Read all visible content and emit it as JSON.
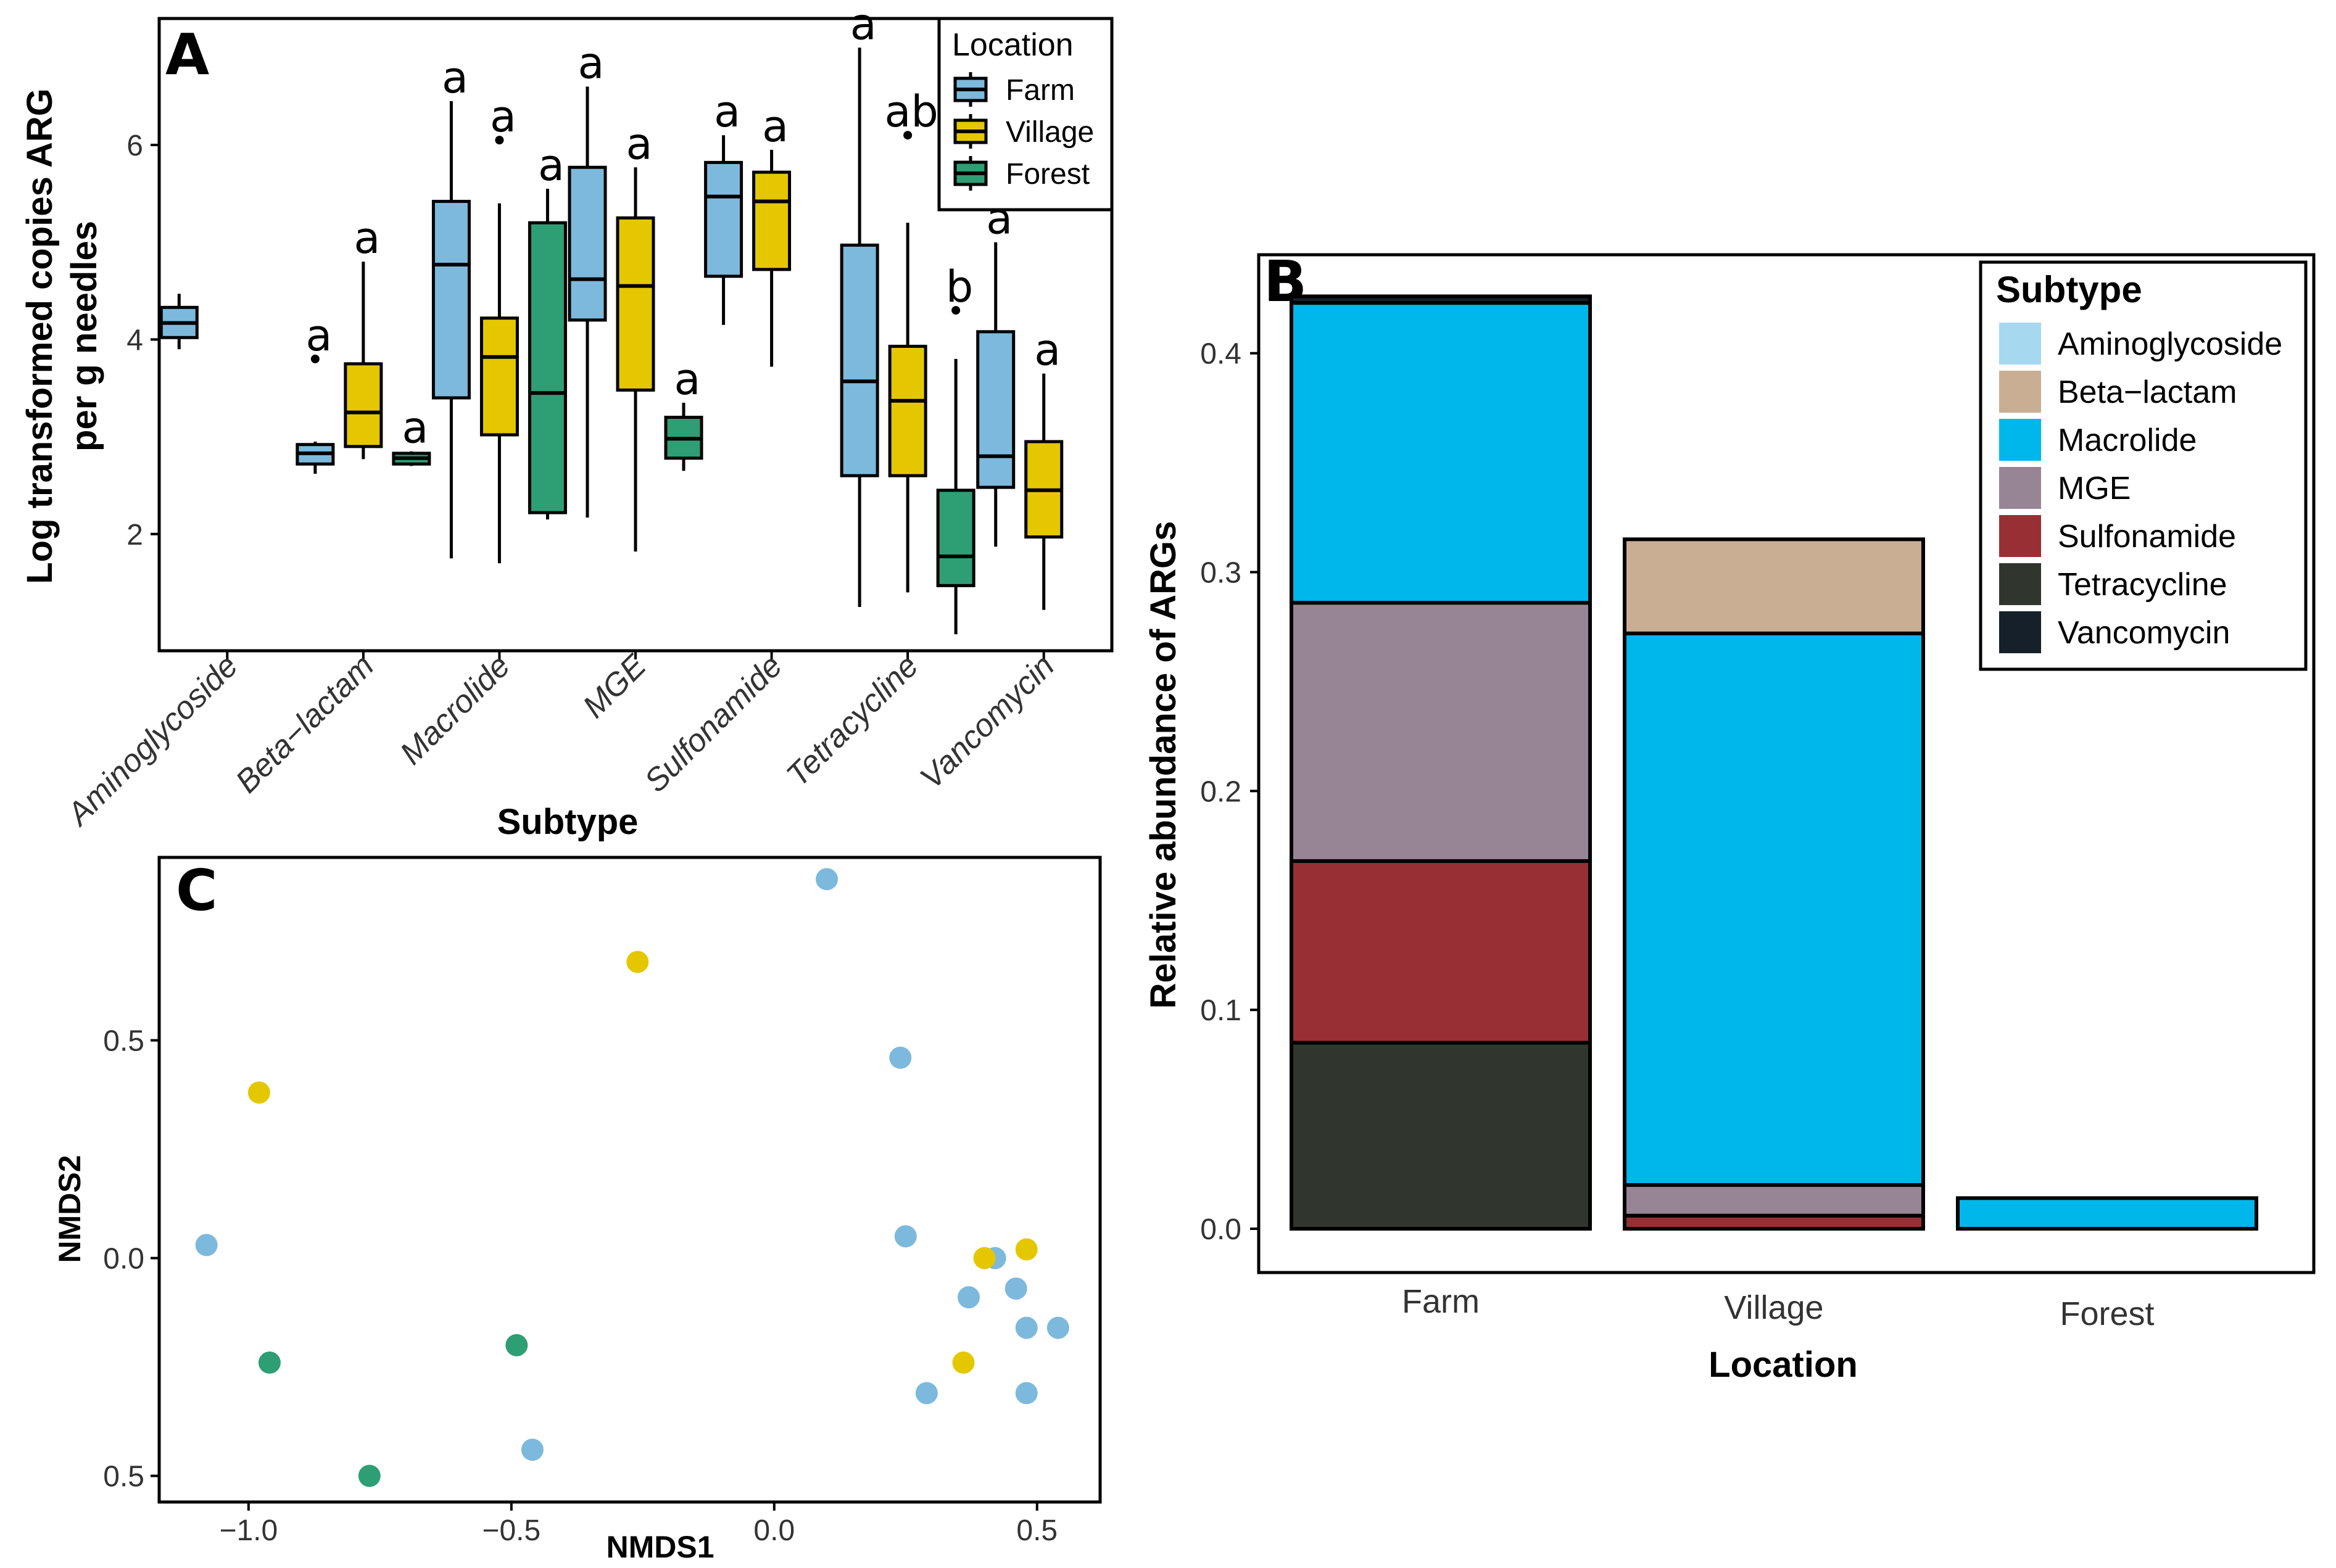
{
  "chart_data": [
    {
      "panel": "A",
      "type": "box",
      "xlabel": "Subtype",
      "ylabel": [
        "Log transformed copies ARG",
        "per g needles"
      ],
      "ylim": [
        0.8,
        7.3
      ],
      "yticks": [
        2,
        4,
        6
      ],
      "categories": [
        "Aminoglycoside",
        "Beta−lactam",
        "Macrolide",
        "MGE",
        "Sulfonamide",
        "Tetracycline",
        "Vancomycin"
      ],
      "legend": {
        "title": "Location",
        "entries": [
          "Farm",
          "Village",
          "Forest"
        ]
      },
      "colors": {
        "Farm": "#7DB9DC",
        "Village": "#E5C700",
        "Forest": "#2E9E75"
      },
      "boxes": [
        {
          "category": "Aminoglycoside",
          "location": "Farm",
          "low": 3.9,
          "q1": 4.02,
          "median": 4.17,
          "q3": 4.33,
          "high": 4.47,
          "outliers": [],
          "letter": ""
        },
        {
          "category": "Beta−lactam",
          "location": "Farm",
          "low": 2.62,
          "q1": 2.72,
          "median": 2.83,
          "q3": 2.92,
          "high": 2.95,
          "outliers": [
            3.8
          ],
          "letter": "a"
        },
        {
          "category": "Beta−lactam",
          "location": "Village",
          "low": 2.77,
          "q1": 2.9,
          "median": 3.25,
          "q3": 3.75,
          "high": 4.8,
          "outliers": [],
          "letter": "a"
        },
        {
          "category": "Beta−lactam",
          "location": "Forest",
          "low": 2.7,
          "q1": 2.72,
          "median": 2.78,
          "q3": 2.83,
          "high": 2.85,
          "outliers": [],
          "letter": "a"
        },
        {
          "category": "Macrolide",
          "location": "Farm",
          "low": 1.75,
          "q1": 3.4,
          "median": 4.77,
          "q3": 5.42,
          "high": 6.45,
          "outliers": [],
          "letter": "a"
        },
        {
          "category": "Macrolide",
          "location": "Village",
          "low": 1.7,
          "q1": 3.02,
          "median": 3.82,
          "q3": 4.22,
          "high": 5.4,
          "outliers": [
            6.05
          ],
          "letter": "a"
        },
        {
          "category": "Macrolide",
          "location": "Forest",
          "low": 2.15,
          "q1": 2.22,
          "median": 3.45,
          "q3": 5.2,
          "high": 5.55,
          "outliers": [],
          "letter": "a"
        },
        {
          "category": "MGE",
          "location": "Farm",
          "low": 2.17,
          "q1": 4.2,
          "median": 4.62,
          "q3": 5.77,
          "high": 6.6,
          "outliers": [],
          "letter": "a"
        },
        {
          "category": "MGE",
          "location": "Village",
          "low": 1.82,
          "q1": 3.48,
          "median": 4.55,
          "q3": 5.25,
          "high": 5.77,
          "outliers": [],
          "letter": "a"
        },
        {
          "category": "MGE",
          "location": "Forest",
          "low": 2.65,
          "q1": 2.78,
          "median": 2.98,
          "q3": 3.2,
          "high": 3.35,
          "outliers": [],
          "letter": "a"
        },
        {
          "category": "Sulfonamide",
          "location": "Farm",
          "low": 4.15,
          "q1": 4.65,
          "median": 5.47,
          "q3": 5.82,
          "high": 6.1,
          "outliers": [],
          "letter": "a"
        },
        {
          "category": "Sulfonamide",
          "location": "Village",
          "low": 3.72,
          "q1": 4.72,
          "median": 5.42,
          "q3": 5.72,
          "high": 5.95,
          "outliers": [],
          "letter": "a"
        },
        {
          "category": "Tetracycline",
          "location": "Farm",
          "low": 1.25,
          "q1": 2.6,
          "median": 3.57,
          "q3": 4.97,
          "high": 7.0,
          "outliers": [],
          "letter": "a"
        },
        {
          "category": "Tetracycline",
          "location": "Village",
          "low": 1.4,
          "q1": 2.6,
          "median": 3.37,
          "q3": 3.93,
          "high": 5.2,
          "outliers": [
            6.1
          ],
          "letter": "ab"
        },
        {
          "category": "Tetracycline",
          "location": "Forest",
          "low": 0.97,
          "q1": 1.47,
          "median": 1.77,
          "q3": 2.45,
          "high": 3.8,
          "outliers": [
            4.3
          ],
          "letter": "b"
        },
        {
          "category": "Vancomycin",
          "location": "Farm",
          "low": 1.87,
          "q1": 2.48,
          "median": 2.8,
          "q3": 4.08,
          "high": 5.0,
          "outliers": [],
          "letter": "a"
        },
        {
          "category": "Vancomycin",
          "location": "Village",
          "low": 1.22,
          "q1": 1.97,
          "median": 2.45,
          "q3": 2.95,
          "high": 3.65,
          "outliers": [],
          "letter": "a"
        }
      ]
    },
    {
      "panel": "B",
      "type": "bar",
      "stacked": true,
      "xlabel": "Location",
      "ylabel": "Relative abundance of ARGs",
      "ylim": [
        -0.02,
        0.445
      ],
      "yticks": [
        "0.0",
        "0.1",
        "0.2",
        "0.3",
        "0.4"
      ],
      "categories": [
        "Farm",
        "Village",
        "Forest"
      ],
      "legend": {
        "title": "Subtype",
        "entries": [
          "Aminoglycoside",
          "Beta−lactam",
          "Macrolide",
          "MGE",
          "Sulfonamide",
          "Tetracycline",
          "Vancomycin"
        ]
      },
      "colors": {
        "Aminoglycoside": "#A6D8F0",
        "Beta−lactam": "#C9AE94",
        "Macrolide": "#00B7EB",
        "MGE": "#978495",
        "Sulfonamide": "#982F35",
        "Tetracycline": "#30362E",
        "Vancomycin": "#15202B"
      },
      "series": [
        {
          "name": "Tetracycline",
          "values": [
            0.085,
            0.0,
            0.0
          ]
        },
        {
          "name": "Sulfonamide",
          "values": [
            0.083,
            0.006,
            0.0
          ]
        },
        {
          "name": "MGE",
          "values": [
            0.118,
            0.014,
            0.0
          ]
        },
        {
          "name": "Macrolide",
          "values": [
            0.137,
            0.252,
            0.014
          ]
        },
        {
          "name": "Beta−lactam",
          "values": [
            0.0,
            0.043,
            0.0
          ]
        },
        {
          "name": "Vancomycin",
          "values": [
            0.003,
            0.0,
            0.0
          ]
        },
        {
          "name": "Aminoglycoside",
          "values": [
            0.0,
            0.0,
            0.0
          ]
        }
      ]
    },
    {
      "panel": "C",
      "type": "scatter",
      "xlabel": "NMDS1",
      "ylabel": "NMDS2",
      "xlim": [
        -1.17,
        0.62
      ],
      "ylim": [
        -0.56,
        0.92
      ],
      "xticks": [
        "−1.0",
        "−0.5",
        "0.0",
        "0.5"
      ],
      "yticks": [
        "0.5",
        "0.0",
        "0.5"
      ],
      "colors": {
        "Farm": "#7DB9DC",
        "Village": "#E5C700",
        "Forest": "#2E9E75"
      },
      "points": [
        {
          "x": 0.1,
          "y": 0.87,
          "location": "Farm"
        },
        {
          "x": 0.24,
          "y": 0.46,
          "location": "Farm"
        },
        {
          "x": -1.08,
          "y": 0.03,
          "location": "Farm"
        },
        {
          "x": 0.25,
          "y": 0.05,
          "location": "Farm"
        },
        {
          "x": 0.42,
          "y": 0.0,
          "location": "Farm"
        },
        {
          "x": 0.37,
          "y": -0.09,
          "location": "Farm"
        },
        {
          "x": 0.46,
          "y": -0.07,
          "location": "Farm"
        },
        {
          "x": 0.48,
          "y": -0.16,
          "location": "Farm"
        },
        {
          "x": 0.54,
          "y": -0.16,
          "location": "Farm"
        },
        {
          "x": 0.29,
          "y": -0.31,
          "location": "Farm"
        },
        {
          "x": 0.48,
          "y": -0.31,
          "location": "Farm"
        },
        {
          "x": -0.46,
          "y": -0.44,
          "location": "Farm"
        },
        {
          "x": -0.26,
          "y": 0.68,
          "location": "Village"
        },
        {
          "x": -0.98,
          "y": 0.38,
          "location": "Village"
        },
        {
          "x": 0.4,
          "y": 0.0,
          "location": "Village"
        },
        {
          "x": 0.48,
          "y": 0.02,
          "location": "Village"
        },
        {
          "x": 0.36,
          "y": -0.24,
          "location": "Village"
        },
        {
          "x": -0.96,
          "y": -0.24,
          "location": "Forest"
        },
        {
          "x": -0.49,
          "y": -0.2,
          "location": "Forest"
        },
        {
          "x": -0.77,
          "y": -0.5,
          "location": "Forest"
        }
      ]
    }
  ]
}
